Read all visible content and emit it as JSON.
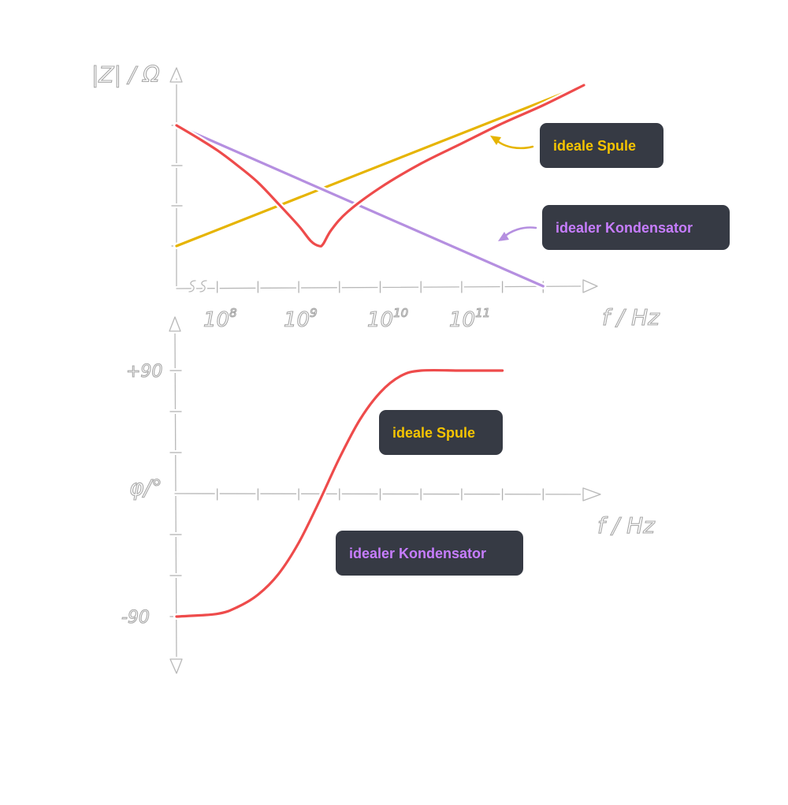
{
  "chart_data": [
    {
      "type": "line",
      "ylabel": "|Z| / Ω",
      "xlabel": "f / Hz",
      "x_ticks": [
        "10^8",
        "10^9",
        "10^10",
        "10^11"
      ],
      "legend": [
        {
          "name": "ideale Spule",
          "color": "#f5c400"
        },
        {
          "name": "idealer Kondensator",
          "color": "#c77dff"
        }
      ],
      "series": [
        {
          "name": "ideale Spule",
          "color": "#e6b400",
          "x": [
            0,
            10
          ],
          "y": [
            1,
            5
          ]
        },
        {
          "name": "idealer Kondensator",
          "color": "#b58fe0",
          "x": [
            0,
            9
          ],
          "y": [
            4,
            0
          ]
        },
        {
          "name": "",
          "color": "#ee4b4b",
          "x": [
            0,
            0.5,
            1,
            1.5,
            2,
            2.5,
            3,
            3.3,
            3.5,
            3.6,
            3.8,
            4.2,
            5,
            6,
            7,
            8,
            9,
            10
          ],
          "y": [
            4,
            3.7,
            3.38,
            3.0,
            2.58,
            2.05,
            1.5,
            1.12,
            1.0,
            1.05,
            1.4,
            1.85,
            2.45,
            3.05,
            3.55,
            4.05,
            4.5,
            5.0
          ]
        }
      ]
    },
    {
      "type": "line",
      "ylabel": "φ/°",
      "xlabel": "f / Hz",
      "y_ticks": [
        "+90",
        "-90"
      ],
      "legend": [
        {
          "name": "ideale Spule",
          "color": "#f5c400"
        },
        {
          "name": "idealer Kondensator",
          "color": "#c77dff"
        }
      ],
      "series": [
        {
          "name": "",
          "color": "#ee4b4b",
          "x": [
            0,
            1,
            1.5,
            2,
            2.5,
            3,
            3.5,
            4,
            4.5,
            5,
            5.5,
            6,
            7,
            8
          ],
          "y": [
            -90,
            -88,
            -83,
            -74,
            -59,
            -36,
            -6,
            26,
            54,
            74,
            86,
            90,
            90,
            90
          ]
        }
      ]
    }
  ]
}
